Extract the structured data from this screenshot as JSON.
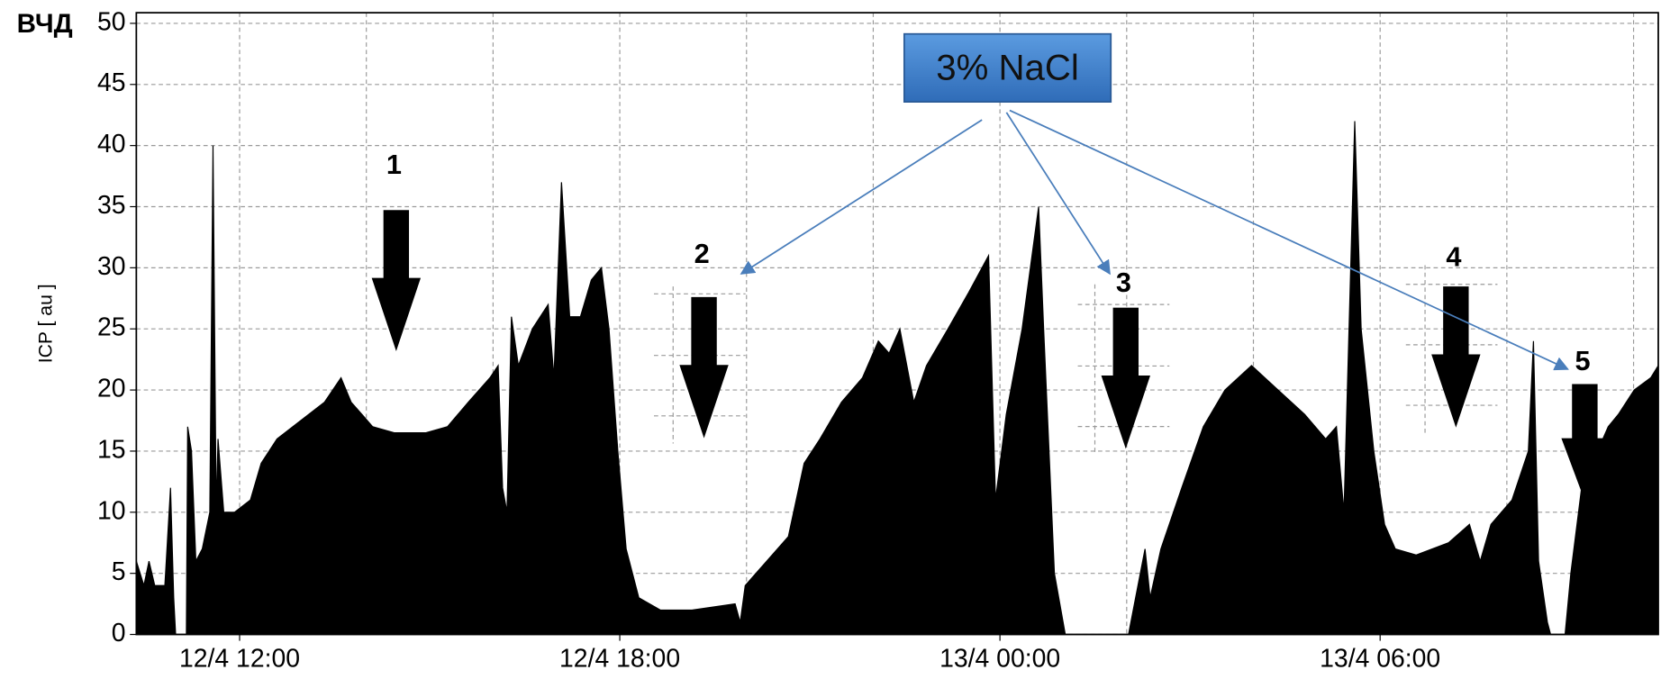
{
  "chart_data": {
    "type": "area",
    "corner_label": "ВЧД",
    "ylabel": "ICP [ au ]",
    "annotation": "3% NaCl",
    "markers": [
      "1",
      "2",
      "3",
      "4",
      "5"
    ],
    "grid": true,
    "xlim": [
      10.37,
      34.39
    ],
    "ylim": [
      0,
      50
    ],
    "yticks": [
      0,
      5,
      10,
      15,
      20,
      25,
      30,
      35,
      40,
      45,
      50
    ],
    "xticks": [
      {
        "value": 12,
        "label": "12/4 12:00"
      },
      {
        "value": 18,
        "label": "12/4 18:00"
      },
      {
        "value": 24,
        "label": "13/4 00:00"
      },
      {
        "value": 30,
        "label": "13/4 06:00"
      }
    ],
    "xminor": [
      14,
      16,
      20,
      22,
      26,
      28,
      32,
      34
    ],
    "series": [
      {
        "name": "ICP",
        "color": "#000000",
        "x": [
          10.37,
          10.49,
          10.57,
          10.66,
          10.82,
          10.91,
          10.96,
          10.99,
          11.16,
          11.18,
          11.24,
          11.31,
          11.41,
          11.53,
          11.58,
          11.63,
          11.66,
          11.75,
          11.92,
          12.17,
          12.34,
          12.59,
          12.84,
          13.09,
          13.34,
          13.6,
          13.76,
          13.93,
          14.1,
          14.44,
          14.94,
          15.28,
          15.61,
          15.95,
          16.08,
          16.15,
          16.22,
          16.29,
          16.4,
          16.62,
          16.87,
          16.96,
          17.08,
          17.21,
          17.38,
          17.55,
          17.71,
          17.83,
          17.97,
          18.1,
          18.3,
          18.64,
          19.14,
          19.82,
          19.9,
          19.98,
          20.32,
          20.66,
          20.91,
          21.16,
          21.5,
          21.83,
          22.08,
          22.25,
          22.42,
          22.64,
          22.84,
          23.18,
          23.51,
          23.82,
          23.93,
          24.1,
          24.35,
          24.61,
          24.69,
          24.86,
          25.03,
          26.03,
          26.29,
          26.37,
          26.54,
          26.87,
          27.21,
          27.55,
          27.97,
          28.39,
          28.81,
          29.14,
          29.31,
          29.43,
          29.6,
          29.7,
          29.9,
          30.07,
          30.24,
          30.57,
          31.08,
          31.41,
          31.58,
          31.75,
          32.08,
          32.34,
          32.42,
          32.5,
          32.64,
          32.69,
          32.92,
          33.01,
          33.18,
          33.43,
          33.6,
          33.76,
          34.01,
          34.27,
          34.39
        ],
        "values": [
          6,
          4,
          6,
          4,
          4,
          12,
          3,
          0,
          0,
          17,
          15,
          6,
          7,
          10,
          40,
          10,
          16,
          10,
          10,
          11,
          14,
          16,
          17,
          18,
          19,
          21,
          19,
          18,
          17,
          16.5,
          16.5,
          17,
          19,
          21,
          22,
          12,
          10,
          26,
          22,
          25,
          27,
          21,
          37,
          26,
          26,
          29,
          30,
          25,
          15,
          7,
          3,
          2,
          2,
          2.5,
          1,
          4,
          6,
          8,
          14,
          16,
          19,
          21,
          24,
          23,
          25,
          19,
          22,
          25,
          28,
          31,
          11,
          18,
          25,
          35,
          25,
          5,
          0,
          0,
          7,
          3,
          7,
          12,
          17,
          20,
          22,
          20,
          18,
          16,
          17,
          10,
          42,
          25,
          15,
          9,
          7,
          6.5,
          7.5,
          9,
          6,
          9,
          11,
          15,
          24,
          6,
          1,
          0,
          0,
          5,
          12,
          15,
          17,
          18,
          20,
          21,
          22
        ]
      }
    ]
  }
}
